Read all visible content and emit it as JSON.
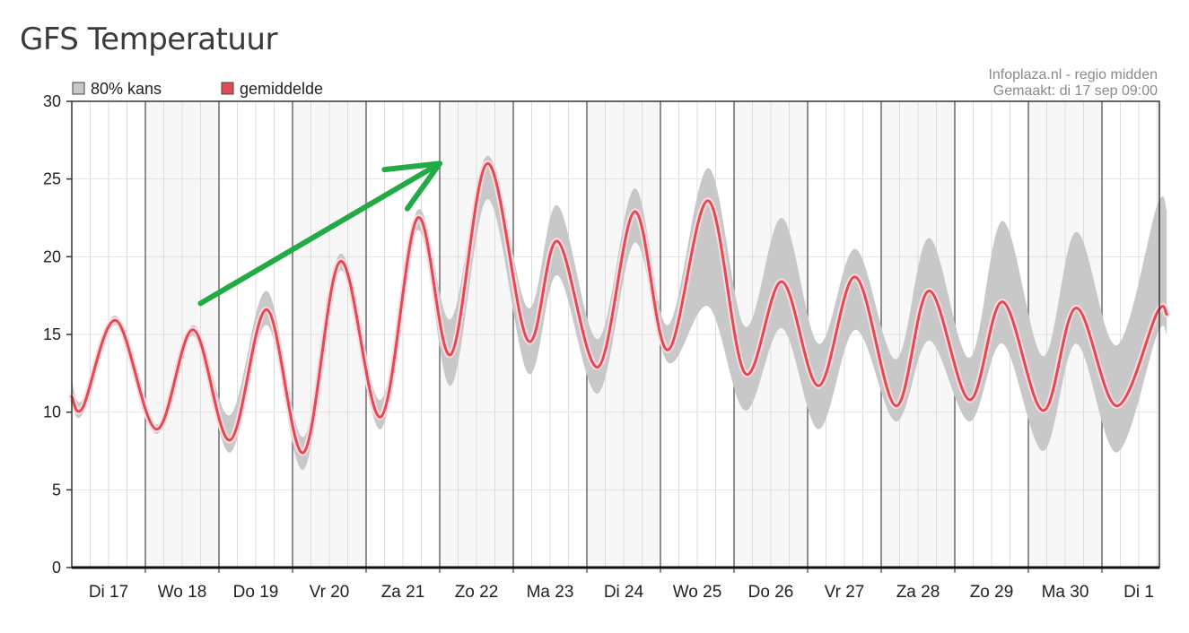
{
  "page": {
    "title": "GFS Temperatuur"
  },
  "chart_data": {
    "type": "area",
    "source_lines": [
      "Infoplaza.nl - regio midden",
      "Gemaakt: di 17 sep 09:00"
    ],
    "yticks": [
      0,
      5,
      10,
      15,
      20,
      25,
      30
    ],
    "ylim": [
      0,
      30
    ],
    "xlim": [
      0,
      15
    ],
    "grid": true,
    "legend_position": "top-left",
    "days": [
      "Di 17",
      "Wo 18",
      "Do 19",
      "Vr 20",
      "Za 21",
      "Zo 22",
      "Ma 23",
      "Di 24",
      "Wo 25",
      "Do 26",
      "Vr 27",
      "Za 28",
      "Zo 29",
      "Ma 30",
      "Di 1"
    ],
    "series": [
      {
        "name": "gemiddelde",
        "color": "#e04a56",
        "points": [
          [
            0.0,
            11.0
          ],
          [
            0.15,
            10.3
          ],
          [
            0.6,
            15.9
          ],
          [
            1.15,
            8.9
          ],
          [
            1.65,
            15.3
          ],
          [
            2.15,
            8.2
          ],
          [
            2.65,
            16.6
          ],
          [
            3.15,
            7.4
          ],
          [
            3.65,
            19.7
          ],
          [
            4.2,
            9.7
          ],
          [
            4.7,
            22.5
          ],
          [
            5.15,
            13.7
          ],
          [
            5.65,
            26.0
          ],
          [
            6.2,
            14.6
          ],
          [
            6.6,
            21.0
          ],
          [
            7.15,
            12.9
          ],
          [
            7.65,
            22.9
          ],
          [
            8.1,
            14.0
          ],
          [
            8.65,
            23.6
          ],
          [
            9.15,
            12.5
          ],
          [
            9.65,
            18.4
          ],
          [
            10.15,
            11.7
          ],
          [
            10.65,
            18.7
          ],
          [
            11.2,
            10.4
          ],
          [
            11.65,
            17.8
          ],
          [
            12.2,
            10.8
          ],
          [
            12.65,
            17.1
          ],
          [
            13.2,
            10.1
          ],
          [
            13.65,
            16.7
          ],
          [
            14.2,
            10.4
          ],
          [
            14.75,
            16.4
          ],
          [
            14.88,
            16.3
          ]
        ]
      },
      {
        "name": "80% kans",
        "color": "#c8c8c8",
        "upper": [
          [
            0.0,
            12.0
          ],
          [
            0.15,
            10.8
          ],
          [
            0.6,
            16.2
          ],
          [
            1.15,
            9.2
          ],
          [
            1.65,
            15.6
          ],
          [
            2.15,
            9.8
          ],
          [
            2.65,
            17.8
          ],
          [
            3.15,
            8.4
          ],
          [
            3.65,
            20.2
          ],
          [
            4.2,
            10.8
          ],
          [
            4.7,
            23.0
          ],
          [
            5.15,
            16.0
          ],
          [
            5.65,
            26.5
          ],
          [
            6.2,
            16.7
          ],
          [
            6.6,
            23.3
          ],
          [
            7.15,
            14.7
          ],
          [
            7.65,
            24.4
          ],
          [
            8.1,
            15.6
          ],
          [
            8.65,
            25.7
          ],
          [
            9.15,
            15.5
          ],
          [
            9.65,
            22.5
          ],
          [
            10.15,
            14.4
          ],
          [
            10.65,
            20.5
          ],
          [
            11.2,
            13.4
          ],
          [
            11.65,
            21.2
          ],
          [
            12.2,
            13.5
          ],
          [
            12.65,
            22.3
          ],
          [
            13.2,
            13.6
          ],
          [
            13.65,
            21.6
          ],
          [
            14.2,
            14.3
          ],
          [
            14.75,
            23.3
          ],
          [
            14.88,
            23.0
          ]
        ],
        "lower": [
          [
            0.0,
            10.5
          ],
          [
            0.15,
            9.9
          ],
          [
            0.6,
            15.6
          ],
          [
            1.15,
            8.6
          ],
          [
            1.65,
            14.9
          ],
          [
            2.15,
            7.4
          ],
          [
            2.65,
            15.6
          ],
          [
            3.15,
            6.3
          ],
          [
            3.65,
            19.1
          ],
          [
            4.2,
            8.9
          ],
          [
            4.7,
            21.7
          ],
          [
            5.15,
            11.7
          ],
          [
            5.65,
            23.7
          ],
          [
            6.2,
            12.5
          ],
          [
            6.6,
            18.8
          ],
          [
            7.15,
            11.2
          ],
          [
            7.65,
            20.9
          ],
          [
            8.1,
            13.2
          ],
          [
            8.65,
            16.8
          ],
          [
            9.15,
            10.1
          ],
          [
            9.65,
            15.4
          ],
          [
            10.15,
            8.9
          ],
          [
            10.65,
            15.3
          ],
          [
            11.2,
            9.4
          ],
          [
            11.65,
            14.6
          ],
          [
            12.2,
            9.4
          ],
          [
            12.65,
            14.4
          ],
          [
            13.2,
            7.5
          ],
          [
            13.65,
            14.4
          ],
          [
            14.2,
            7.4
          ],
          [
            14.75,
            15.0
          ],
          [
            14.88,
            15.0
          ]
        ]
      }
    ]
  },
  "annotations": [
    {
      "type": "arrow",
      "color": "#22aa44",
      "from": [
        1.75,
        17.0
      ],
      "to": [
        5.0,
        26.0
      ]
    }
  ]
}
